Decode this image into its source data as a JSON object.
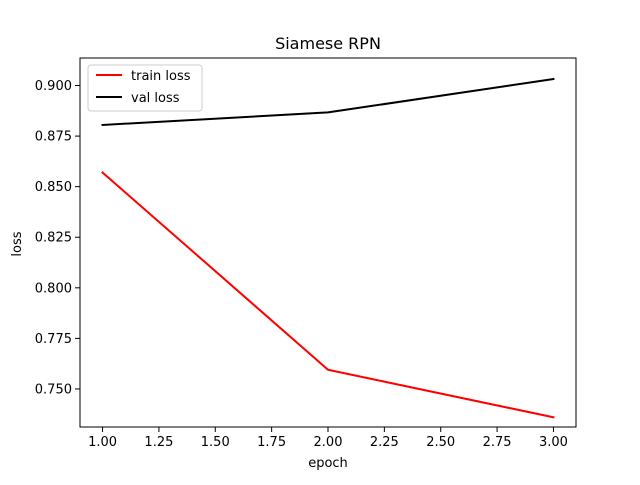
{
  "chart_data": {
    "type": "line",
    "title": "Siamese RPN",
    "xlabel": "epoch",
    "ylabel": "loss",
    "x": [
      1.0,
      2.0,
      3.0
    ],
    "series": [
      {
        "name": "train loss",
        "color": "#ff0000",
        "values": [
          0.857,
          0.7595,
          0.736
        ]
      },
      {
        "name": "val loss",
        "color": "#000000",
        "values": [
          0.8805,
          0.8867,
          0.9032
        ]
      }
    ],
    "xlim": [
      0.9,
      3.1
    ],
    "ylim": [
      0.7312,
      0.9136
    ],
    "xticks": [
      1.0,
      1.25,
      1.5,
      1.75,
      2.0,
      2.25,
      2.5,
      2.75,
      3.0
    ],
    "xtick_labels": [
      "1.00",
      "1.25",
      "1.50",
      "1.75",
      "2.00",
      "2.25",
      "2.50",
      "2.75",
      "3.00"
    ],
    "yticks": [
      0.75,
      0.775,
      0.8,
      0.825,
      0.85,
      0.875,
      0.9
    ],
    "ytick_labels": [
      "0.750",
      "0.775",
      "0.800",
      "0.825",
      "0.850",
      "0.875",
      "0.900"
    ],
    "grid": false,
    "legend_position": "top-left"
  }
}
